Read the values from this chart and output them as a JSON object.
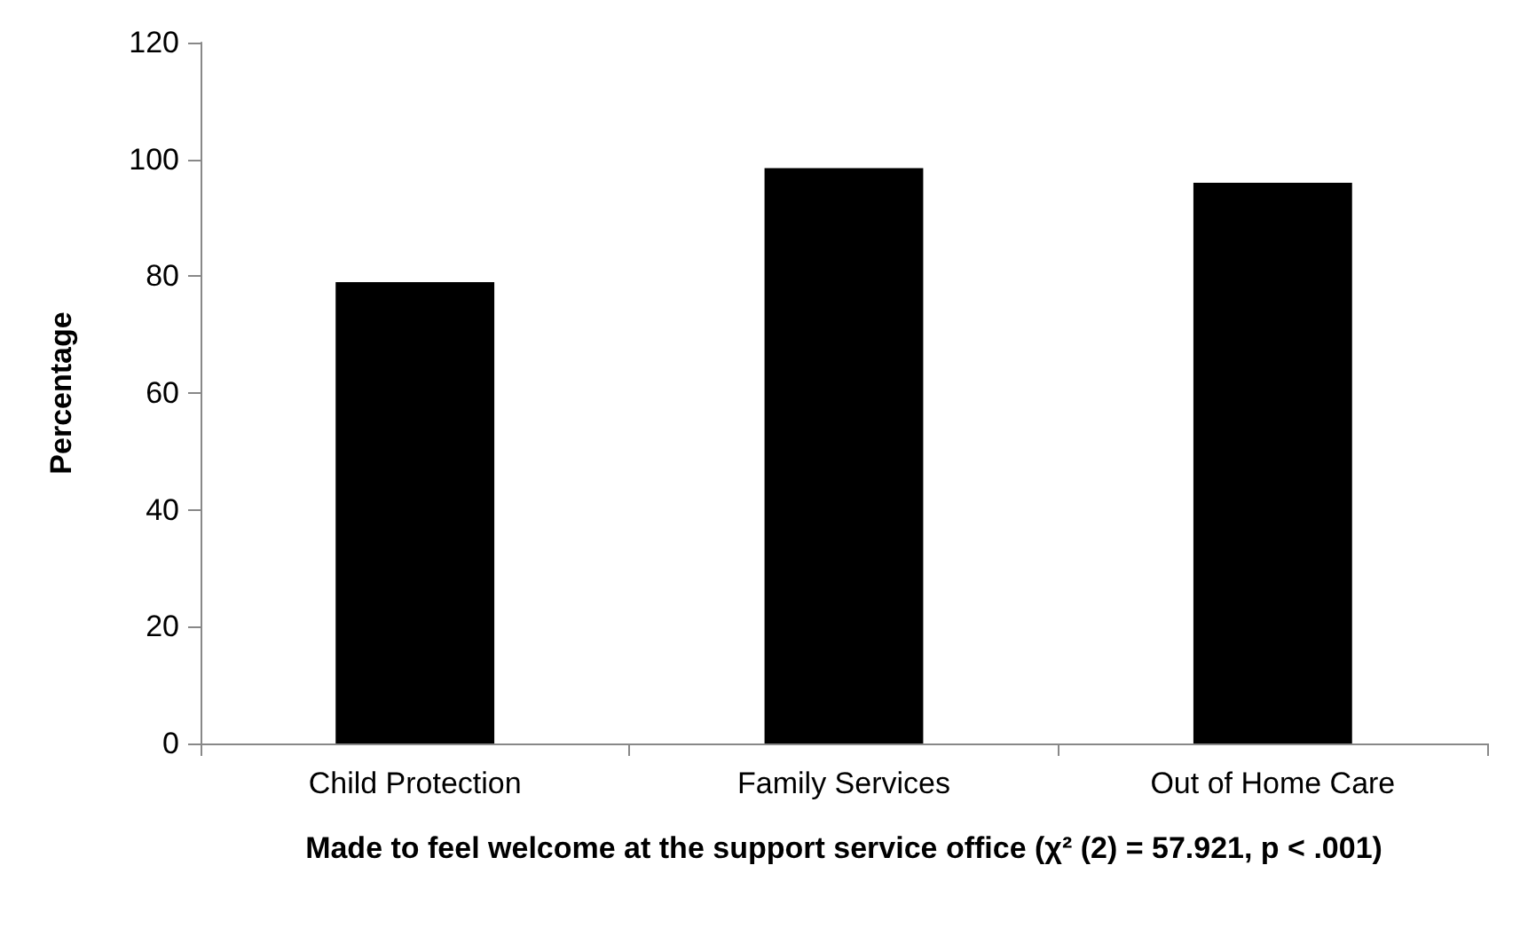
{
  "chart_data": {
    "type": "bar",
    "xlabel": "Made to feel welcome at the support service office (χ² (2) = 57.921, p < .001)",
    "ylabel": "Percentage",
    "categories": [
      "Child Protection",
      "Family Services",
      "Out of Home Care"
    ],
    "values": [
      79,
      98.5,
      96
    ],
    "color": "#000000",
    "ylim": [
      0,
      120
    ],
    "yticks": [
      0,
      20,
      40,
      60,
      80,
      100,
      120
    ],
    "grid": false
  }
}
